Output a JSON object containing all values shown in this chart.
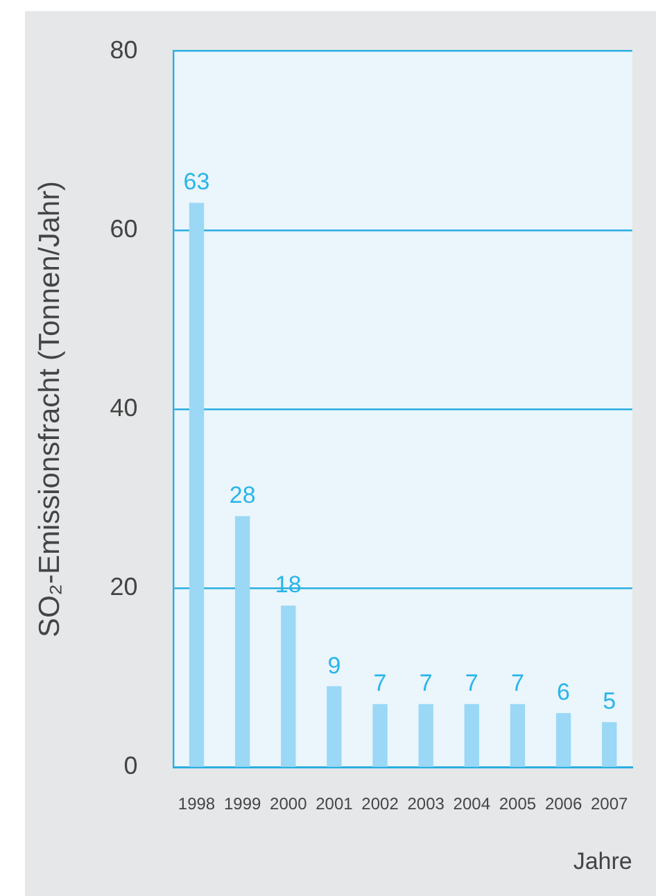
{
  "chart_data": {
    "type": "bar",
    "categories": [
      "1998",
      "1999",
      "2000",
      "2001",
      "2002",
      "2003",
      "2004",
      "2005",
      "2006",
      "2007"
    ],
    "values": [
      63,
      28,
      18,
      9,
      7,
      7,
      7,
      7,
      6,
      5
    ],
    "color": "#9ad8f5",
    "xlabel": "Jahre",
    "ylabel": "SO₂-Emissionsfracht (Tonnen/Jahr)",
    "ylim": [
      0,
      80
    ],
    "yticks": [
      0,
      20,
      40,
      60,
      80
    ],
    "grid": "y",
    "data_labels": true
  }
}
